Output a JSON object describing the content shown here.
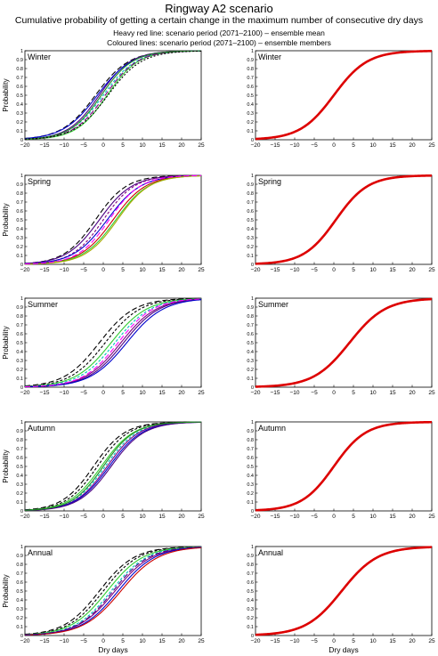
{
  "header": {
    "title": "Ringway A2 scenario",
    "subtitle": "Cumulative probability of getting a certain change in the maximum number of consecutive dry days",
    "legend_line_1": "Heavy red line: scenario period (2071–2100) – ensemble mean",
    "legend_line_2": "Coloured lines: scenario period (2071–2100) – ensemble members"
  },
  "axes": {
    "xlabel": "Dry days",
    "ylabel": "Probability",
    "xlim": [
      -20,
      25
    ],
    "ylim": [
      0,
      1
    ],
    "xticks": [
      -20,
      -15,
      -10,
      -5,
      0,
      5,
      10,
      15,
      20,
      25
    ],
    "yticks": [
      0,
      0.1,
      0.2,
      0.3,
      0.4,
      0.5,
      0.6,
      0.7,
      0.8,
      0.9,
      1
    ],
    "xtick_labels": [
      "−20",
      "−15",
      "−10",
      "−5",
      "0",
      "5",
      "10",
      "15",
      "20",
      "25"
    ],
    "ytick_labels": [
      "0",
      "0.1",
      "0.2",
      "0.3",
      "0.4",
      "0.5",
      "0.6",
      "0.7",
      "0.8",
      "0.9",
      "1"
    ],
    "grid": false
  },
  "colors": {
    "ensemble_mean": "#dd0000",
    "members": [
      "#000000",
      "#4b0082",
      "#800080",
      "#00bfbf",
      "#32cd32",
      "#228b22",
      "#0000cd",
      "#cc0000",
      "#aaaa00",
      "#ff00ff"
    ]
  },
  "chart_data": [
    {
      "type": "line",
      "panel": "members",
      "season": "Winter",
      "title": "Winter",
      "series": [
        {
          "center": -2.0,
          "scale": 4.3,
          "color": "#000000",
          "dash": "6 3"
        },
        {
          "center": -1.0,
          "scale": 4.0,
          "color": "#4b0082",
          "dash": ""
        },
        {
          "center": 0.0,
          "scale": 4.2,
          "color": "#00bfbf",
          "dash": "3 2"
        },
        {
          "center": 1.0,
          "scale": 4.0,
          "color": "#32cd32",
          "dash": ""
        },
        {
          "center": -1.5,
          "scale": 4.4,
          "color": "#0000cd",
          "dash": ""
        },
        {
          "center": 0.5,
          "scale": 4.1,
          "color": "#800080",
          "dash": "6 3"
        },
        {
          "center": -0.5,
          "scale": 4.0,
          "color": "#228b22",
          "dash": ""
        },
        {
          "center": 1.2,
          "scale": 4.3,
          "color": "#000000",
          "dash": "2 2"
        }
      ]
    },
    {
      "type": "line",
      "panel": "mean",
      "season": "Winter",
      "title": "Winter",
      "series": [
        {
          "center": 0.0,
          "scale": 4.3,
          "color": "#dd0000",
          "dash": ""
        }
      ]
    },
    {
      "type": "line",
      "panel": "members",
      "season": "Spring",
      "title": "Spring",
      "series": [
        {
          "center": -2.0,
          "scale": 4.0,
          "color": "#000000",
          "dash": "6 3"
        },
        {
          "center": -1.0,
          "scale": 4.2,
          "color": "#4b0082",
          "dash": ""
        },
        {
          "center": 0.0,
          "scale": 4.0,
          "color": "#800080",
          "dash": "3 2"
        },
        {
          "center": 1.0,
          "scale": 4.3,
          "color": "#0000cd",
          "dash": ""
        },
        {
          "center": 2.5,
          "scale": 4.2,
          "color": "#cc0000",
          "dash": ""
        },
        {
          "center": 3.2,
          "scale": 4.2,
          "color": "#32cd32",
          "dash": ""
        },
        {
          "center": 3.6,
          "scale": 4.1,
          "color": "#aaaa00",
          "dash": ""
        },
        {
          "center": 1.5,
          "scale": 4.0,
          "color": "#ff00ff",
          "dash": "6 3"
        }
      ]
    },
    {
      "type": "line",
      "panel": "mean",
      "season": "Spring",
      "title": "Spring",
      "series": [
        {
          "center": 0.5,
          "scale": 4.1,
          "color": "#dd0000",
          "dash": ""
        }
      ]
    },
    {
      "type": "line",
      "panel": "members",
      "season": "Summer",
      "title": "Summer",
      "series": [
        {
          "center": -1.0,
          "scale": 4.5,
          "color": "#000000",
          "dash": "6 3"
        },
        {
          "center": 0.5,
          "scale": 4.5,
          "color": "#000000",
          "dash": "3 2"
        },
        {
          "center": 2.0,
          "scale": 4.6,
          "color": "#32cd32",
          "dash": ""
        },
        {
          "center": 3.0,
          "scale": 4.6,
          "color": "#00bfbf",
          "dash": "3 2"
        },
        {
          "center": 4.5,
          "scale": 4.6,
          "color": "#800080",
          "dash": ""
        },
        {
          "center": 5.2,
          "scale": 4.6,
          "color": "#4b0082",
          "dash": ""
        },
        {
          "center": 6.0,
          "scale": 4.7,
          "color": "#0000cd",
          "dash": ""
        },
        {
          "center": 3.8,
          "scale": 4.5,
          "color": "#ff00ff",
          "dash": "6 3"
        }
      ]
    },
    {
      "type": "line",
      "panel": "mean",
      "season": "Summer",
      "title": "Summer",
      "series": [
        {
          "center": 4.0,
          "scale": 4.6,
          "color": "#dd0000",
          "dash": ""
        }
      ]
    },
    {
      "type": "line",
      "panel": "members",
      "season": "Autumn",
      "title": "Autumn",
      "series": [
        {
          "center": -2.5,
          "scale": 4.0,
          "color": "#000000",
          "dash": "6 3"
        },
        {
          "center": -1.5,
          "scale": 4.0,
          "color": "#000000",
          "dash": "3 2"
        },
        {
          "center": -0.5,
          "scale": 4.1,
          "color": "#32cd32",
          "dash": ""
        },
        {
          "center": 0.5,
          "scale": 4.1,
          "color": "#00bfbf",
          "dash": "3 2"
        },
        {
          "center": 1.0,
          "scale": 4.1,
          "color": "#800080",
          "dash": ""
        },
        {
          "center": 1.5,
          "scale": 4.2,
          "color": "#0000cd",
          "dash": ""
        },
        {
          "center": 2.0,
          "scale": 4.2,
          "color": "#4b0082",
          "dash": ""
        },
        {
          "center": 0.0,
          "scale": 4.0,
          "color": "#228b22",
          "dash": ""
        }
      ]
    },
    {
      "type": "line",
      "panel": "mean",
      "season": "Autumn",
      "title": "Autumn",
      "series": [
        {
          "center": 0.0,
          "scale": 4.1,
          "color": "#dd0000",
          "dash": ""
        }
      ]
    },
    {
      "type": "line",
      "panel": "members",
      "season": "Annual",
      "title": "Annual",
      "series": [
        {
          "center": -1.0,
          "scale": 4.5,
          "color": "#000000",
          "dash": "6 3"
        },
        {
          "center": 0.0,
          "scale": 4.5,
          "color": "#000000",
          "dash": "3 2"
        },
        {
          "center": 1.0,
          "scale": 4.6,
          "color": "#32cd32",
          "dash": ""
        },
        {
          "center": 2.0,
          "scale": 4.6,
          "color": "#00bfbf",
          "dash": "3 2"
        },
        {
          "center": 3.0,
          "scale": 4.7,
          "color": "#800080",
          "dash": ""
        },
        {
          "center": 3.8,
          "scale": 4.7,
          "color": "#0000cd",
          "dash": ""
        },
        {
          "center": 4.5,
          "scale": 4.8,
          "color": "#cc0000",
          "dash": ""
        },
        {
          "center": 2.5,
          "scale": 4.6,
          "color": "#4b0082",
          "dash": "6 3"
        }
      ]
    },
    {
      "type": "line",
      "panel": "mean",
      "season": "Annual",
      "title": "Annual",
      "series": [
        {
          "center": 2.0,
          "scale": 4.6,
          "color": "#dd0000",
          "dash": ""
        }
      ]
    }
  ]
}
